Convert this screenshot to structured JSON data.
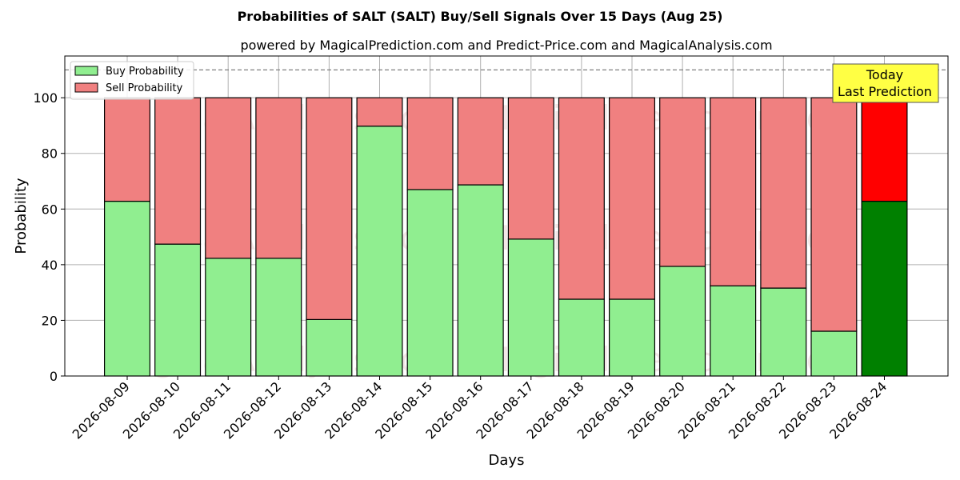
{
  "chart_data": {
    "type": "bar",
    "stacked": true,
    "title": "Probabilities of SALT (SALT) Buy/Sell Signals Over 15 Days (Aug 25)",
    "subtitle": "powered by MagicalPrediction.com and Predict-Price.com and MagicalAnalysis.com",
    "xlabel": "Days",
    "ylabel": "Probability",
    "ylim": [
      0,
      115
    ],
    "yticks": [
      0,
      20,
      40,
      60,
      80,
      100
    ],
    "grid": true,
    "legend_position": "top-left",
    "categories": [
      "2026-08-09",
      "2026-08-10",
      "2026-08-11",
      "2026-08-12",
      "2026-08-13",
      "2026-08-14",
      "2026-08-15",
      "2026-08-16",
      "2026-08-17",
      "2026-08-18",
      "2026-08-19",
      "2026-08-20",
      "2026-08-21",
      "2026-08-22",
      "2026-08-23",
      "2026-08-24"
    ],
    "series": [
      {
        "name": "Buy Probability",
        "color": "#90ee90",
        "values": [
          62.8,
          47.4,
          42.3,
          42.3,
          20.3,
          89.8,
          67.0,
          68.7,
          49.2,
          27.6,
          27.6,
          39.4,
          32.4,
          31.6,
          16.1,
          62.8
        ]
      },
      {
        "name": "Sell Probability",
        "color": "#f08080",
        "values": [
          37.2,
          52.6,
          57.7,
          57.7,
          79.7,
          10.2,
          33.0,
          31.3,
          50.8,
          72.4,
          72.4,
          60.6,
          67.6,
          68.4,
          83.9,
          37.2
        ]
      }
    ],
    "highlight": {
      "index": 15,
      "buy_color": "#008000",
      "sell_color": "#ff0000"
    },
    "reference_line": {
      "y": 110,
      "style": "dashed",
      "color": "#808080"
    },
    "annotation": {
      "lines": [
        "Today",
        "Last Prediction"
      ],
      "background": "#ffff44"
    },
    "watermarks": [
      "MagicalAnalysis.com",
      "MagicalPrediction.com"
    ]
  }
}
